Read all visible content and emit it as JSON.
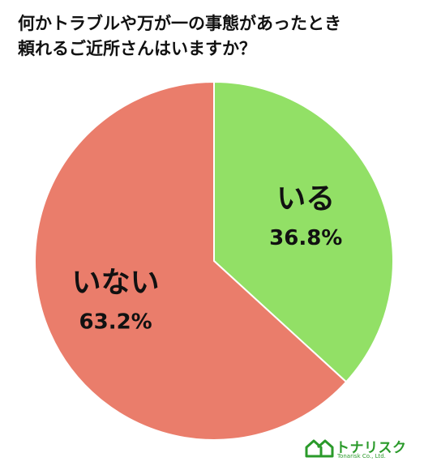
{
  "chart_data": {
    "type": "pie",
    "title_lines": [
      "何かトラブルや万が一の事態があったとき",
      "頼れるご近所さんはいますか？"
    ],
    "slices": [
      {
        "label": "いる",
        "value": 36.8,
        "value_label": "36.8%",
        "color": "#92e066"
      },
      {
        "label": "いない",
        "value": 63.2,
        "value_label": "63.2%",
        "color": "#ea7d6b"
      }
    ],
    "start_angle": "12 o'clock",
    "direction": "clockwise"
  },
  "logo": {
    "name": "トナリスク",
    "subtitle": "Tonarisk Co., Ltd.",
    "color": "#2a9a2a"
  }
}
